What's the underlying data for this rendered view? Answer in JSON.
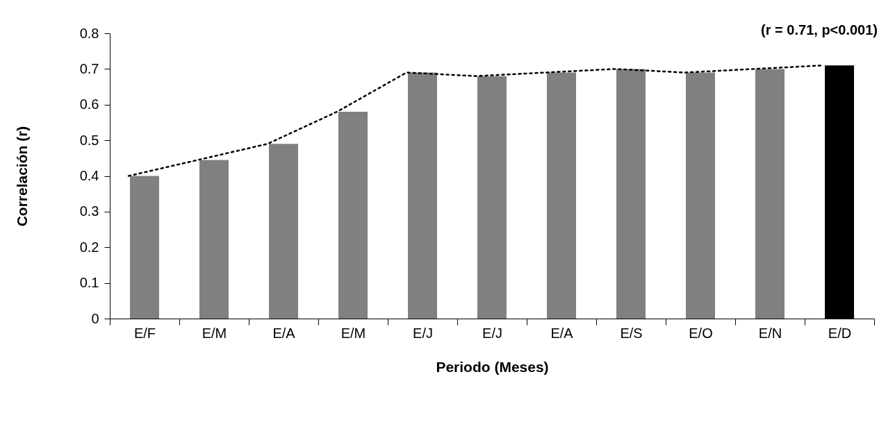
{
  "chart_data": {
    "type": "bar",
    "xlabel": "Periodo (Meses)",
    "ylabel": "Correlación (r)",
    "annotations": [
      "(r = 0.71, p<0.001)"
    ],
    "categories": [
      "E/F",
      "E/M",
      "E/A",
      "E/M",
      "E/J",
      "E/J",
      "E/A",
      "E/S",
      "E/O",
      "E/N",
      "E/D"
    ],
    "series": [
      {
        "colors": [
          "#808080",
          "#808080",
          "#808080",
          "#808080",
          "#808080",
          "#808080",
          "#808080",
          "#808080",
          "#808080",
          "#808080",
          "#000000"
        ],
        "values": [
          0.4,
          0.445,
          0.49,
          0.58,
          0.69,
          0.68,
          0.69,
          0.7,
          0.69,
          0.7,
          0.71
        ]
      },
      {
        "type": "line",
        "color": "#000000",
        "line_style": "dotted",
        "marker": "none",
        "values": [
          0.4,
          0.445,
          0.49,
          0.58,
          0.69,
          0.68,
          0.69,
          0.7,
          0.69,
          0.7,
          0.71
        ]
      }
    ],
    "ylim": [
      0,
      0.8
    ],
    "yticks": [
      0,
      0.1,
      0.2,
      0.3,
      0.4,
      0.5,
      0.6,
      0.7,
      0.8
    ],
    "grid": false
  }
}
